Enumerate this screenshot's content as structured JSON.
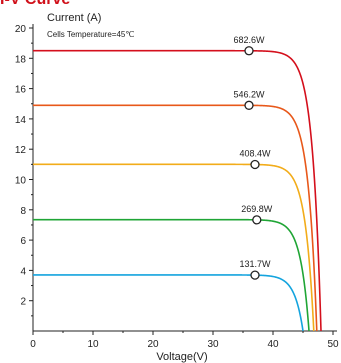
{
  "chart_data": {
    "type": "line",
    "title": "I-V Curve",
    "ylabel": "Current (A)",
    "xlabel": "Voltage(V)",
    "annotation": "Cells Temperature=45℃",
    "xlim": [
      0,
      50
    ],
    "ylim": [
      0,
      20
    ],
    "x_ticks": [
      0,
      10,
      20,
      30,
      40,
      50
    ],
    "y_ticks": [
      2,
      4,
      6,
      8,
      10,
      12,
      14,
      16,
      18,
      20
    ],
    "grid": false,
    "series": [
      {
        "color": "#d40f1c",
        "isc": 18.5,
        "voc": 48.0,
        "vmp": 36.0,
        "pmax_label": "682.6W"
      },
      {
        "color": "#e8581a",
        "isc": 14.9,
        "voc": 47.3,
        "vmp": 36.0,
        "pmax_label": "546.2W"
      },
      {
        "color": "#f2ac1a",
        "isc": 11.0,
        "voc": 46.8,
        "vmp": 37.0,
        "pmax_label": "408.4W"
      },
      {
        "color": "#1fa535",
        "isc": 7.35,
        "voc": 46.0,
        "vmp": 37.3,
        "pmax_label": "269.8W"
      },
      {
        "color": "#14a4de",
        "isc": 3.7,
        "voc": 45.0,
        "vmp": 37.0,
        "pmax_label": "131.7W"
      }
    ]
  }
}
